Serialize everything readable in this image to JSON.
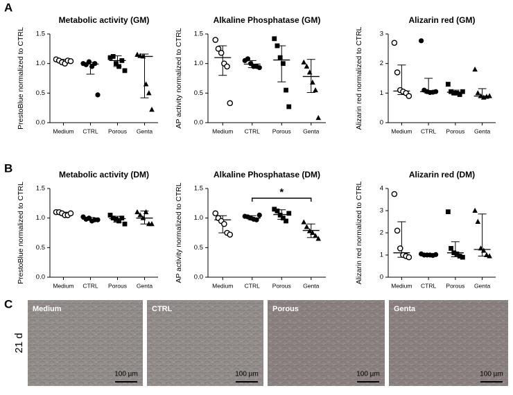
{
  "panel_labels": [
    "A",
    "B",
    "C"
  ],
  "chart_data": [
    {
      "type": "dot",
      "title": "Metabolic activity  (GM)",
      "ylabel": "PrestoBlue normalized to CTRL",
      "categories": [
        "Medium",
        "CTRL",
        "Porous",
        "Genta"
      ],
      "markers": [
        "open-circle",
        "circle",
        "square",
        "triangle"
      ],
      "color": "#000000",
      "values": [
        [
          1.07,
          1.05,
          1.02,
          1.0,
          1.05,
          1.04
        ],
        [
          1.0,
          0.98,
          1.03,
          0.95,
          1.0,
          0.47
        ],
        [
          1.1,
          1.12,
          1.0,
          0.95,
          1.05,
          0.88
        ],
        [
          1.15,
          1.13,
          1.12,
          0.65,
          0.5,
          0.22
        ]
      ],
      "medians": [
        1.04,
        0.99,
        1.05,
        1.12
      ],
      "error_low": [
        1.0,
        0.82,
        0.95,
        0.42
      ],
      "error_high": [
        1.07,
        1.02,
        1.13,
        1.16
      ],
      "ylim": [
        0,
        1.5
      ],
      "yticks": [
        {
          "value": 0,
          "label": "0.0"
        },
        {
          "value": 0.5,
          "label": "0.5"
        },
        {
          "value": 1,
          "label": "1.0"
        },
        {
          "value": 1.5,
          "label": "1.5"
        }
      ]
    },
    {
      "type": "dot",
      "title": "Alkaline Phosphatase (GM)",
      "ylabel": "AP activity normalized to CTRL",
      "categories": [
        "Medium",
        "CTRL",
        "Porous",
        "Genta"
      ],
      "markers": [
        "open-circle",
        "circle",
        "square",
        "triangle"
      ],
      "color": "#000000",
      "values": [
        [
          1.4,
          1.25,
          1.18,
          1.0,
          0.95,
          0.33
        ],
        [
          1.05,
          1.08,
          1.0,
          0.95,
          0.95,
          0.93
        ],
        [
          1.42,
          1.3,
          1.1,
          1.0,
          0.55,
          0.27
        ],
        [
          1.02,
          0.95,
          0.85,
          0.68,
          0.55,
          0.08
        ]
      ],
      "medians": [
        1.1,
        0.99,
        1.06,
        0.78
      ],
      "error_low": [
        0.8,
        0.93,
        0.69,
        0.51
      ],
      "error_high": [
        1.3,
        1.05,
        1.3,
        1.07
      ],
      "ylim": [
        0,
        1.5
      ],
      "yticks": [
        {
          "value": 0,
          "label": "0.0"
        },
        {
          "value": 0.5,
          "label": "0.5"
        },
        {
          "value": 1,
          "label": "1.0"
        },
        {
          "value": 1.5,
          "label": "1.5"
        }
      ]
    },
    {
      "type": "dot",
      "title": "Alizarin red (GM)",
      "ylabel": "Alizarin red normalized to CTRL",
      "categories": [
        "Medium",
        "CTRL",
        "Porous",
        "Genta"
      ],
      "markers": [
        "open-circle",
        "circle",
        "square",
        "triangle"
      ],
      "color": "#000000",
      "values": [
        [
          2.7,
          1.7,
          1.1,
          1.05,
          1.0,
          0.9
        ],
        [
          2.77,
          1.1,
          1.05,
          1.02,
          1.03,
          1.05
        ],
        [
          1.3,
          1.05,
          1.0,
          1.0,
          0.95,
          1.05
        ],
        [
          1.8,
          1.0,
          0.9,
          0.85,
          0.88,
          0.9
        ]
      ],
      "medians": [
        1.07,
        1.05,
        1.03,
        0.9
      ],
      "error_low": [
        0.95,
        1.0,
        0.95,
        0.85
      ],
      "error_high": [
        1.95,
        1.5,
        1.1,
        1.15
      ],
      "ylim": [
        0,
        3
      ],
      "yticks": [
        0,
        1,
        2,
        3
      ]
    },
    {
      "type": "dot",
      "title": "Metabolic activity  (DM)",
      "ylabel": "PrestoBlue normalized to CTRL",
      "categories": [
        "Medium",
        "CTRL",
        "Porous",
        "Genta"
      ],
      "markers": [
        "open-circle",
        "circle",
        "square",
        "triangle"
      ],
      "color": "#000000",
      "values": [
        [
          1.1,
          1.1,
          1.08,
          1.05,
          1.05,
          1.08
        ],
        [
          1.02,
          0.98,
          1.0,
          0.95,
          0.97,
          0.97
        ],
        [
          1.05,
          1.0,
          0.98,
          0.95,
          1.0,
          0.9
        ],
        [
          1.1,
          1.05,
          1.0,
          1.1,
          0.9,
          0.9
        ]
      ],
      "medians": [
        1.08,
        0.98,
        0.99,
        1.0
      ],
      "error_low": [
        1.05,
        0.96,
        0.93,
        0.9
      ],
      "error_high": [
        1.1,
        1.01,
        1.03,
        1.12
      ],
      "ylim": [
        0,
        1.5
      ],
      "yticks": [
        {
          "value": 0,
          "label": "0.0"
        },
        {
          "value": 0.5,
          "label": "0.5"
        },
        {
          "value": 1,
          "label": "1.0"
        },
        {
          "value": 1.5,
          "label": "1.5"
        }
      ]
    },
    {
      "type": "dot",
      "title": "Alkaline Phosphatase (DM)",
      "ylabel": "AP activity normalized to CTRL",
      "categories": [
        "Medium",
        "CTRL",
        "Porous",
        "Genta"
      ],
      "markers": [
        "open-circle",
        "circle",
        "square",
        "triangle"
      ],
      "color": "#000000",
      "values": [
        [
          1.08,
          1.0,
          0.95,
          0.9,
          0.75,
          0.72
        ],
        [
          1.03,
          1.02,
          1.0,
          0.98,
          0.97,
          1.05
        ],
        [
          1.15,
          1.12,
          1.05,
          1.0,
          0.95,
          1.08
        ],
        [
          0.93,
          0.85,
          0.78,
          0.75,
          0.7,
          0.65
        ]
      ],
      "medians": [
        0.97,
        1.0,
        1.06,
        0.79
      ],
      "error_low": [
        0.75,
        0.97,
        0.98,
        0.67
      ],
      "error_high": [
        1.04,
        1.04,
        1.14,
        0.9
      ],
      "significance": {
        "label": "*",
        "between": [
          1,
          3
        ]
      },
      "ylim": [
        0,
        1.5
      ],
      "yticks": [
        {
          "value": 0,
          "label": "0.0"
        },
        {
          "value": 0.5,
          "label": "0.5"
        },
        {
          "value": 1,
          "label": "1.0"
        },
        {
          "value": 1.5,
          "label": "1.5"
        }
      ]
    },
    {
      "type": "dot",
      "title": "Alizarin red (DM)",
      "ylabel": "Alizarin red normalized to CTRL",
      "categories": [
        "Medium",
        "CTRL",
        "Porous",
        "Genta"
      ],
      "markers": [
        "open-circle",
        "circle",
        "square",
        "triangle"
      ],
      "color": "#000000",
      "values": [
        [
          3.75,
          2.1,
          1.3,
          1.0,
          0.95,
          0.9
        ],
        [
          1.05,
          1.0,
          1.0,
          1.0,
          0.98,
          1.02
        ],
        [
          2.95,
          1.3,
          1.1,
          1.05,
          0.95,
          0.9
        ],
        [
          3.0,
          2.5,
          1.3,
          1.2,
          1.0,
          0.95
        ]
      ],
      "medians": [
        1.1,
        1.0,
        1.1,
        1.25
      ],
      "error_low": [
        0.9,
        0.98,
        0.92,
        0.95
      ],
      "error_high": [
        2.5,
        1.03,
        1.6,
        2.85
      ],
      "ylim": [
        0,
        4
      ],
      "yticks": [
        0,
        1,
        2,
        3,
        4
      ]
    }
  ],
  "micrographs": {
    "row_label": "21 d",
    "images": [
      {
        "label": "Medium",
        "scale": "100 µm"
      },
      {
        "label": "CTRL",
        "scale": "100 µm"
      },
      {
        "label": "Porous",
        "scale": "100 µm"
      },
      {
        "label": "Genta",
        "scale": "100 µm"
      }
    ]
  }
}
